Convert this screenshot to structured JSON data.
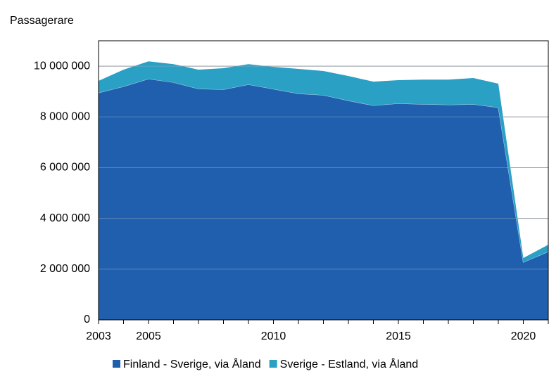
{
  "chart_data": {
    "type": "stacked_area",
    "y_label": "Passagerare",
    "x": [
      2003,
      2004,
      2005,
      2006,
      2007,
      2008,
      2009,
      2010,
      2011,
      2012,
      2013,
      2014,
      2015,
      2016,
      2017,
      2018,
      2019,
      2020,
      2021
    ],
    "series": [
      {
        "name": "Finland - Sverige, via Åland",
        "color": "#1f5fae",
        "values": [
          8950000,
          9200000,
          9500000,
          9360000,
          9110000,
          9080000,
          9280000,
          9100000,
          8920000,
          8860000,
          8640000,
          8450000,
          8530000,
          8500000,
          8480000,
          8500000,
          8370000,
          2270000,
          2690000
        ]
      },
      {
        "name": "Sverige - Estland, via Åland",
        "color": "#2aa0c4",
        "values": [
          470000,
          660000,
          690000,
          720000,
          750000,
          840000,
          800000,
          870000,
          970000,
          950000,
          970000,
          940000,
          920000,
          970000,
          990000,
          1030000,
          940000,
          170000,
          270000
        ]
      }
    ],
    "xlim": [
      2003,
      2021
    ],
    "xticks": [
      2003,
      2005,
      2010,
      2015,
      2020
    ],
    "ylim": [
      0,
      11000000
    ],
    "yticks": [
      0,
      {
        "value": 2000000,
        "label": "2 000 000"
      },
      {
        "value": 4000000,
        "label": "4 000 000"
      },
      {
        "value": 6000000,
        "label": "6 000 000"
      },
      {
        "value": 8000000,
        "label": "8 000 000"
      },
      {
        "value": 10000000,
        "label": "10 000 000"
      }
    ],
    "grid": true,
    "legend": "bottom"
  }
}
